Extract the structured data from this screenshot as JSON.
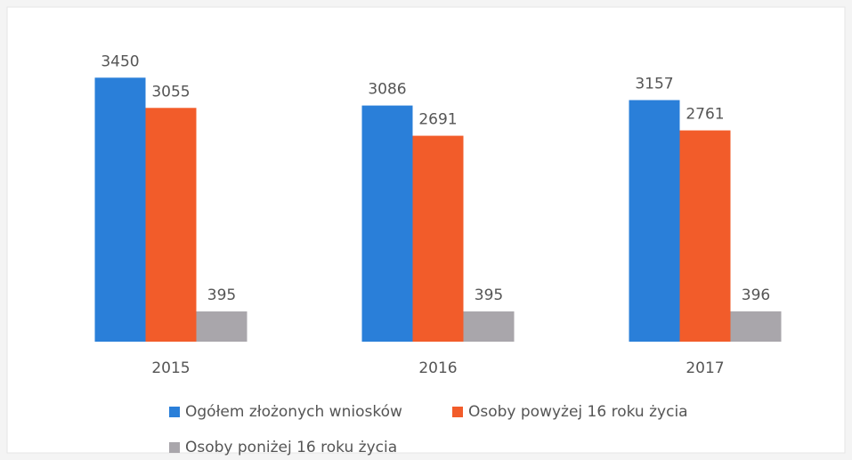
{
  "chart_data": {
    "type": "bar",
    "categories": [
      "2015",
      "2016",
      "2017"
    ],
    "series": [
      {
        "name": "Ogółem złożonych wniosków",
        "color": "#2a7fd9",
        "values": [
          3450,
          3086,
          3157
        ]
      },
      {
        "name": "Osoby powyżej 16 roku życia",
        "color": "#f25c2a",
        "values": [
          3055,
          2691,
          2761
        ]
      },
      {
        "name": "Osoby poniżej 16 roku życia",
        "color": "#a9a6ab",
        "values": [
          395,
          395,
          396
        ]
      }
    ],
    "ylim": [
      0,
      3500
    ],
    "legend": "bottom"
  }
}
